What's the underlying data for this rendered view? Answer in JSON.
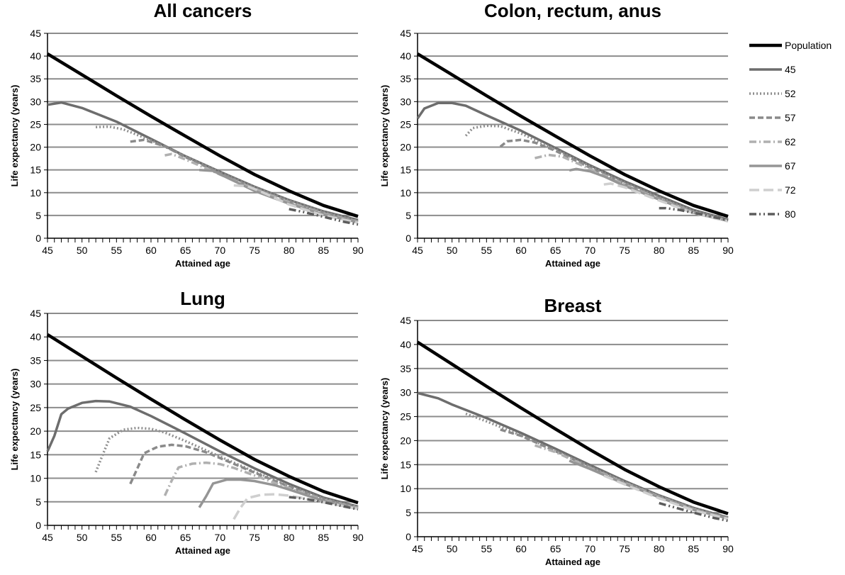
{
  "legend": [
    {
      "name": "Population",
      "color": "#000000",
      "dash": "solid"
    },
    {
      "name": "45",
      "color": "#6d6d6d",
      "dash": "solid"
    },
    {
      "name": "52",
      "color": "#8f8f8f",
      "dash": "dot"
    },
    {
      "name": "57",
      "color": "#8a8a8a",
      "dash": "dash"
    },
    {
      "name": "62",
      "color": "#b0b0b0",
      "dash": "dashdot"
    },
    {
      "name": "67",
      "color": "#959595",
      "dash": "solid"
    },
    {
      "name": "72",
      "color": "#cfcfcf",
      "dash": "longdash"
    },
    {
      "name": "80",
      "color": "#5c5c5c",
      "dash": "dashdotdot"
    }
  ],
  "chart_data": [
    {
      "type": "line",
      "title": "All cancers",
      "xlabel": "Attained age",
      "ylabel": "Life expectancy (years)",
      "xlim": [
        45,
        90
      ],
      "ylim": [
        0,
        45
      ],
      "xticks": [
        45,
        50,
        55,
        60,
        65,
        70,
        75,
        80,
        85,
        90
      ],
      "yticks": [
        0,
        5,
        10,
        15,
        20,
        25,
        30,
        35,
        40,
        45
      ],
      "grid": true,
      "series": [
        {
          "name": "Population",
          "x": [
            45,
            50,
            55,
            60,
            65,
            70,
            75,
            80,
            85,
            90
          ],
          "y": [
            40.5,
            35.9,
            31.3,
            26.8,
            22.4,
            18.1,
            14.0,
            10.4,
            7.2,
            4.8
          ]
        },
        {
          "name": "45",
          "x": [
            45,
            47,
            50,
            55,
            60,
            65,
            70,
            75,
            80,
            85,
            90
          ],
          "y": [
            29.3,
            29.8,
            28.6,
            25.6,
            21.8,
            18.0,
            14.6,
            11.3,
            8.4,
            5.9,
            4.0
          ]
        },
        {
          "name": "52",
          "x": [
            52,
            54,
            56,
            60,
            65,
            70,
            75,
            80,
            85,
            90
          ],
          "y": [
            24.4,
            24.5,
            23.9,
            21.5,
            18.0,
            14.5,
            11.2,
            8.3,
            5.8,
            3.8
          ]
        },
        {
          "name": "57",
          "x": [
            57,
            59,
            62,
            65,
            70,
            75,
            80,
            85,
            90
          ],
          "y": [
            21.2,
            21.6,
            20.2,
            17.8,
            14.3,
            11.0,
            8.1,
            5.6,
            3.7
          ]
        },
        {
          "name": "62",
          "x": [
            62,
            63,
            65,
            70,
            75,
            80,
            85,
            90
          ],
          "y": [
            18.2,
            18.5,
            17.3,
            14.0,
            10.8,
            7.9,
            5.4,
            3.6
          ]
        },
        {
          "name": "67",
          "x": [
            67,
            69,
            72,
            75,
            80,
            85,
            90
          ],
          "y": [
            15.0,
            14.8,
            12.6,
            10.4,
            7.6,
            5.2,
            3.5
          ]
        },
        {
          "name": "72",
          "x": [
            72,
            74,
            76,
            80,
            85,
            90
          ],
          "y": [
            11.6,
            11.4,
            10.2,
            7.4,
            5.0,
            3.4
          ]
        },
        {
          "name": "80",
          "x": [
            80,
            82,
            85,
            88,
            90
          ],
          "y": [
            6.4,
            5.8,
            4.7,
            3.6,
            3.0
          ]
        }
      ]
    },
    {
      "type": "line",
      "title": "Colon, rectum, anus",
      "xlabel": "Attained age",
      "ylabel": "Life expectancy (years)",
      "xlim": [
        45,
        90
      ],
      "ylim": [
        0,
        45
      ],
      "xticks": [
        45,
        50,
        55,
        60,
        65,
        70,
        75,
        80,
        85,
        90
      ],
      "yticks": [
        0,
        5,
        10,
        15,
        20,
        25,
        30,
        35,
        40,
        45
      ],
      "grid": true,
      "series": [
        {
          "name": "Population",
          "x": [
            45,
            50,
            55,
            60,
            65,
            70,
            75,
            80,
            85,
            90
          ],
          "y": [
            40.5,
            35.9,
            31.3,
            26.8,
            22.4,
            18.1,
            14.0,
            10.4,
            7.2,
            4.8
          ]
        },
        {
          "name": "45",
          "x": [
            45,
            46,
            48,
            50,
            52,
            55,
            60,
            65,
            70,
            75,
            80,
            85,
            90
          ],
          "y": [
            26.3,
            28.5,
            29.7,
            29.7,
            29.1,
            27.0,
            23.6,
            19.8,
            16.0,
            12.5,
            9.3,
            6.2,
            4.1
          ]
        },
        {
          "name": "52",
          "x": [
            52,
            53,
            55,
            57,
            60,
            65,
            70,
            75,
            80,
            85,
            90
          ],
          "y": [
            22.5,
            24.2,
            24.7,
            24.6,
            23.0,
            19.5,
            15.8,
            12.2,
            9.0,
            6.0,
            4.0
          ]
        },
        {
          "name": "57",
          "x": [
            57,
            58,
            60,
            62,
            65,
            70,
            75,
            80,
            85,
            90
          ],
          "y": [
            20.1,
            21.3,
            21.6,
            21.0,
            19.2,
            15.5,
            12.0,
            8.8,
            5.8,
            3.9
          ]
        },
        {
          "name": "62",
          "x": [
            62,
            64,
            66,
            70,
            75,
            80,
            85,
            90
          ],
          "y": [
            17.6,
            18.3,
            17.9,
            15.2,
            11.8,
            8.6,
            5.7,
            3.8
          ]
        },
        {
          "name": "67",
          "x": [
            67,
            68,
            70,
            72,
            75,
            80,
            85,
            90
          ],
          "y": [
            14.9,
            15.2,
            14.7,
            13.6,
            11.5,
            8.5,
            5.6,
            3.8
          ]
        },
        {
          "name": "72",
          "x": [
            72,
            73,
            75,
            80,
            85,
            90
          ],
          "y": [
            11.8,
            12.0,
            11.2,
            8.3,
            5.5,
            3.7
          ]
        },
        {
          "name": "80",
          "x": [
            80,
            81,
            83,
            86,
            88,
            90
          ],
          "y": [
            6.6,
            6.6,
            6.2,
            5.3,
            4.6,
            4.0
          ]
        }
      ]
    },
    {
      "type": "line",
      "title": "Lung",
      "xlabel": "Attained age",
      "ylabel": "Life expectancy (years)",
      "xlim": [
        45,
        90
      ],
      "ylim": [
        0,
        45
      ],
      "xticks": [
        45,
        50,
        55,
        60,
        65,
        70,
        75,
        80,
        85,
        90
      ],
      "yticks": [
        0,
        5,
        10,
        15,
        20,
        25,
        30,
        35,
        40,
        45
      ],
      "grid": true,
      "series": [
        {
          "name": "Population",
          "x": [
            45,
            50,
            55,
            60,
            65,
            70,
            75,
            80,
            85,
            90
          ],
          "y": [
            40.5,
            35.9,
            31.3,
            26.8,
            22.4,
            18.1,
            14.0,
            10.4,
            7.2,
            4.8
          ]
        },
        {
          "name": "45",
          "x": [
            45,
            46,
            47,
            48,
            50,
            52,
            54,
            57,
            60,
            65,
            70,
            75,
            80,
            85,
            90
          ],
          "y": [
            15.7,
            19.0,
            23.6,
            24.8,
            26.0,
            26.4,
            26.3,
            25.2,
            23.2,
            19.5,
            15.7,
            12.1,
            8.8,
            5.9,
            4.0
          ]
        },
        {
          "name": "52",
          "x": [
            52,
            53,
            54,
            56,
            58,
            60,
            62,
            65,
            70,
            75,
            80,
            85,
            90
          ],
          "y": [
            11.3,
            15.0,
            18.5,
            20.3,
            20.7,
            20.5,
            19.7,
            17.9,
            14.6,
            11.4,
            8.4,
            5.7,
            3.9
          ]
        },
        {
          "name": "57",
          "x": [
            57,
            58,
            59,
            61,
            63,
            65,
            68,
            70,
            75,
            80,
            85,
            90
          ],
          "y": [
            8.8,
            12.0,
            15.3,
            16.7,
            17.1,
            16.8,
            15.5,
            14.3,
            11.2,
            8.2,
            5.6,
            3.8
          ]
        },
        {
          "name": "62",
          "x": [
            62,
            63,
            64,
            66,
            68,
            70,
            72,
            75,
            80,
            85,
            90
          ],
          "y": [
            6.3,
            9.5,
            12.3,
            13.1,
            13.3,
            13.0,
            12.2,
            10.6,
            7.9,
            5.4,
            3.7
          ]
        },
        {
          "name": "67",
          "x": [
            67,
            68,
            69,
            71,
            73,
            75,
            78,
            80,
            85,
            90
          ],
          "y": [
            3.8,
            6.2,
            8.9,
            9.7,
            9.7,
            9.4,
            8.5,
            7.6,
            5.2,
            3.6
          ]
        },
        {
          "name": "72",
          "x": [
            72,
            73,
            74,
            76,
            78,
            80,
            82,
            85,
            90
          ],
          "y": [
            1.3,
            3.8,
            5.8,
            6.5,
            6.6,
            6.3,
            5.8,
            4.9,
            3.5
          ]
        },
        {
          "name": "80",
          "x": [
            80,
            82,
            84,
            86,
            88,
            90
          ],
          "y": [
            6.0,
            5.7,
            5.2,
            4.6,
            4.0,
            3.4
          ]
        }
      ]
    },
    {
      "type": "line",
      "title": "Breast",
      "xlabel": "Attained age",
      "ylabel": "Life expectancy (years)",
      "xlim": [
        45,
        90
      ],
      "ylim": [
        0,
        45
      ],
      "xticks": [
        45,
        50,
        55,
        60,
        65,
        70,
        75,
        80,
        85,
        90
      ],
      "yticks": [
        0,
        5,
        10,
        15,
        20,
        25,
        30,
        35,
        40,
        45
      ],
      "grid": true,
      "series": [
        {
          "name": "Population",
          "x": [
            45,
            50,
            55,
            60,
            65,
            70,
            75,
            80,
            85,
            90
          ],
          "y": [
            40.5,
            35.9,
            31.3,
            26.8,
            22.4,
            18.1,
            14.0,
            10.4,
            7.2,
            4.8
          ]
        },
        {
          "name": "45",
          "x": [
            45,
            48,
            50,
            55,
            60,
            65,
            70,
            75,
            80,
            85,
            90
          ],
          "y": [
            29.9,
            28.8,
            27.5,
            24.7,
            21.6,
            18.3,
            14.9,
            11.6,
            8.6,
            6.0,
            4.0
          ]
        },
        {
          "name": "52",
          "x": [
            52,
            55,
            60,
            65,
            70,
            75,
            80,
            85,
            90
          ],
          "y": [
            25.6,
            24.0,
            21.1,
            17.9,
            14.6,
            11.4,
            8.5,
            5.9,
            3.9
          ]
        },
        {
          "name": "57",
          "x": [
            57,
            60,
            65,
            70,
            75,
            80,
            85,
            90
          ],
          "y": [
            22.3,
            21.0,
            17.8,
            14.5,
            11.3,
            8.4,
            5.8,
            3.9
          ]
        },
        {
          "name": "62",
          "x": [
            62,
            65,
            70,
            75,
            80,
            85,
            90
          ],
          "y": [
            19.0,
            17.6,
            14.3,
            11.2,
            8.3,
            5.7,
            3.8
          ]
        },
        {
          "name": "67",
          "x": [
            67,
            70,
            75,
            80,
            85,
            90
          ],
          "y": [
            15.8,
            14.1,
            11.0,
            8.2,
            5.6,
            3.8
          ]
        },
        {
          "name": "72",
          "x": [
            72,
            75,
            80,
            85,
            90
          ],
          "y": [
            12.7,
            10.9,
            8.0,
            5.5,
            3.7
          ]
        },
        {
          "name": "80",
          "x": [
            80,
            82,
            85,
            88,
            90
          ],
          "y": [
            7.0,
            6.2,
            5.0,
            3.9,
            3.3
          ]
        }
      ]
    }
  ]
}
